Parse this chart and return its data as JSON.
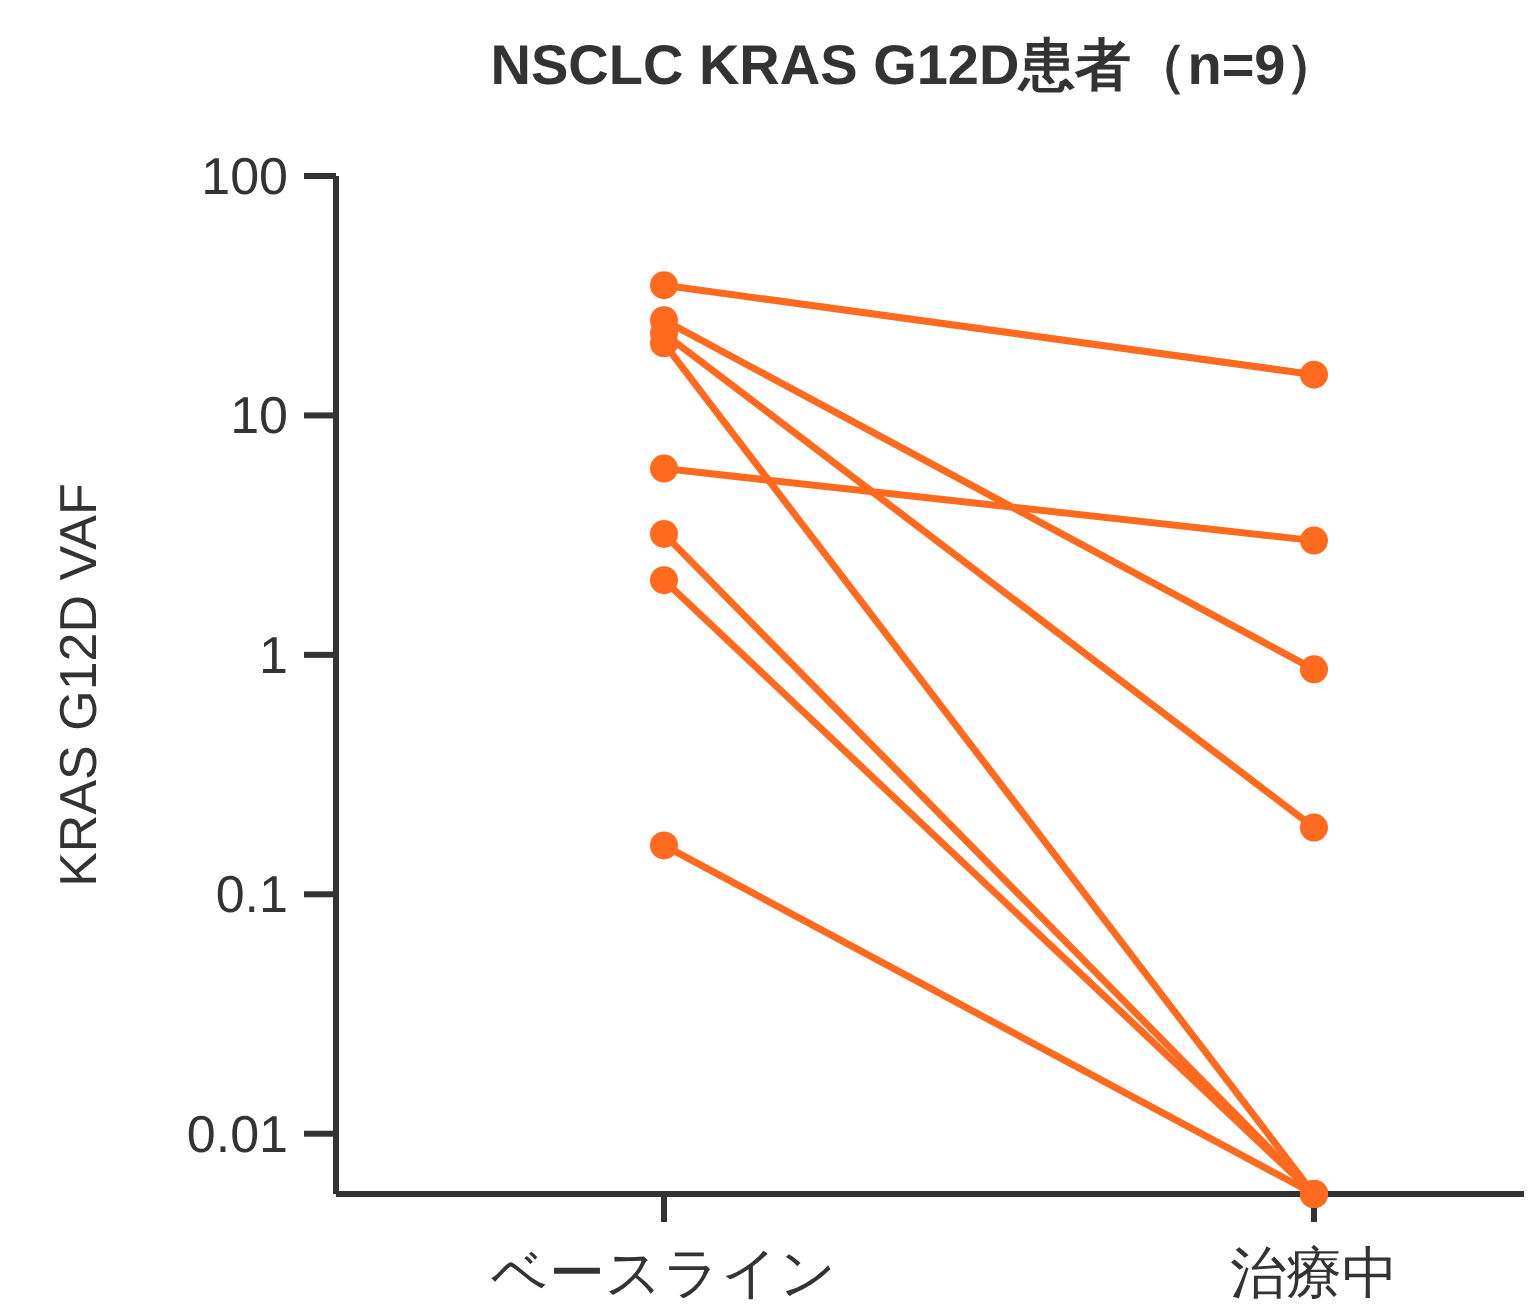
{
  "chart_data": {
    "type": "line",
    "title": "NSCLC KRAS G12D患者（n=9）",
    "ylabel": "KRAS G12D VAF",
    "categories": [
      "ベースライン",
      "治療中"
    ],
    "log": true,
    "ylim": [
      0.0056,
      100
    ],
    "yticks": [
      {
        "value": 0.01,
        "label": "0.01"
      },
      {
        "value": 0.1,
        "label": "0.1"
      },
      {
        "value": 1,
        "label": "1"
      },
      {
        "value": 10,
        "label": "10"
      },
      {
        "value": 100,
        "label": "100"
      }
    ],
    "marker": "circle",
    "line_style": "solid",
    "grid": false,
    "series": [
      {
        "color": "#ff6a1f",
        "values": [
          35,
          14.8
        ]
      },
      {
        "color": "#ff6a1f",
        "values": [
          25,
          0.87
        ]
      },
      {
        "color": "#ff6a1f",
        "values": [
          22,
          0.19
        ]
      },
      {
        "color": "#ff6a1f",
        "values": [
          20,
          0.0056
        ]
      },
      {
        "color": "#ff6a1f",
        "values": [
          6,
          3
        ]
      },
      {
        "color": "#ff6a1f",
        "values": [
          3.2,
          0.0056
        ]
      },
      {
        "color": "#ff6a1f",
        "values": [
          2.05,
          0.0056
        ]
      },
      {
        "color": "#ff6a1f",
        "values": [
          0.16,
          0.0056
        ]
      }
    ]
  }
}
